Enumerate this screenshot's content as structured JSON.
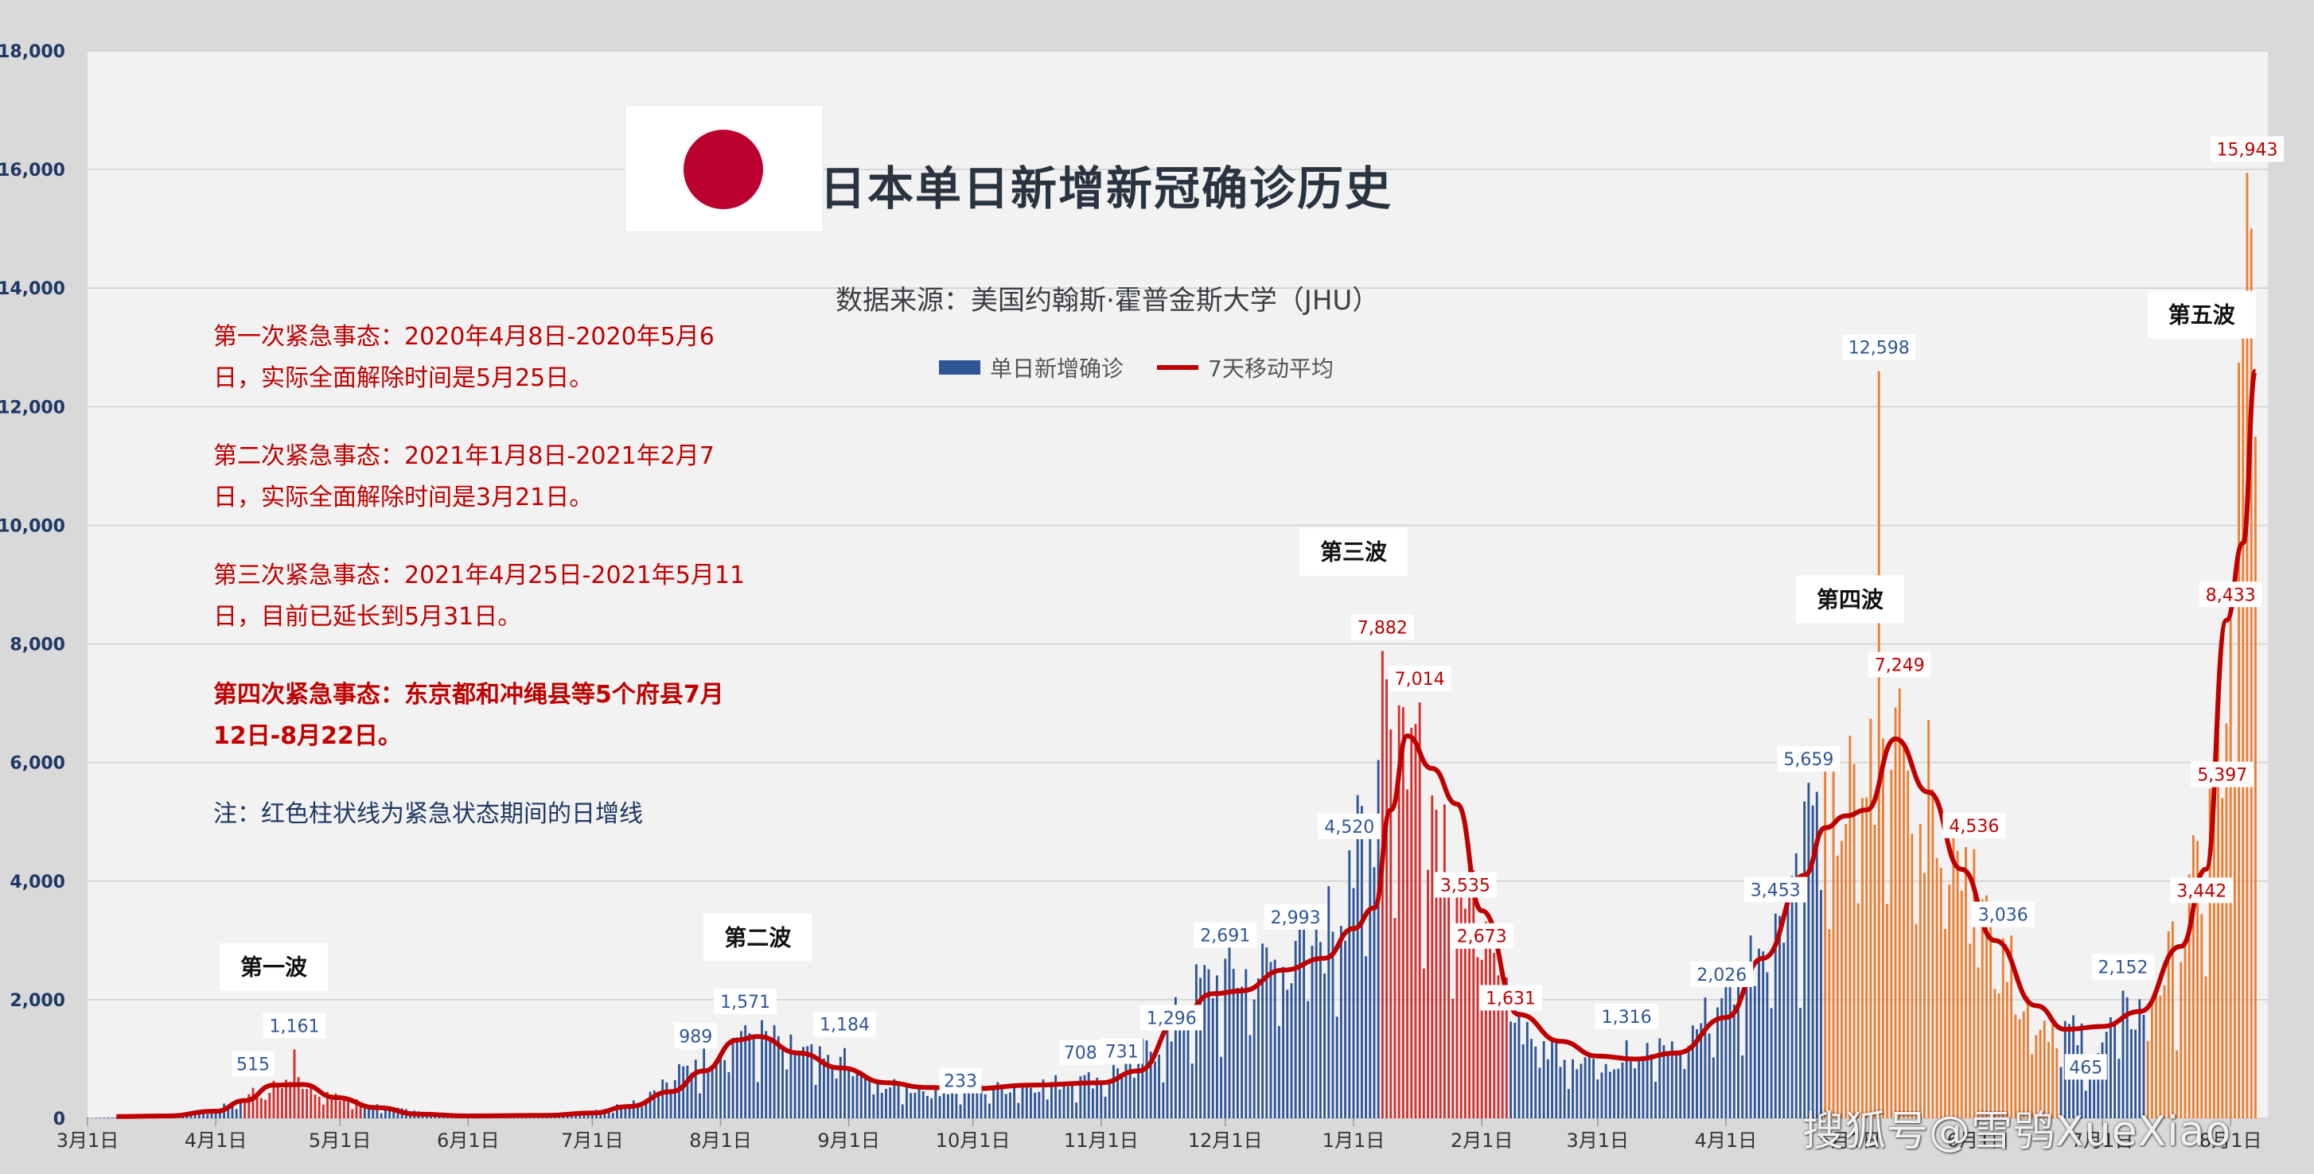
{
  "title": "日本单日新增新冠确诊历史",
  "source": "数据来源：美国约翰斯·霍普金斯大学（JHU）",
  "legend": {
    "bars": "单日新增确诊",
    "line": "7天移动平均"
  },
  "notes": [
    "第一次紧急事态：2020年4月8日-2020年5月6日，实际全面解除时间是5月25日。",
    "第二次紧急事态：2021年1月8日-2021年2月7日，实际全面解除时间是3月21日。",
    "第三次紧急事态：2021年4月25日-2021年5月11日，目前已延长到5月31日。",
    "第四次紧急事态：东京都和冲绳县等5个府县7月12日-8月22日。",
    "注：红色柱状线为紧急状态期间的日增线"
  ],
  "watermark": "搜狐号@雪鸮XueXiao",
  "colors": {
    "normal_bar": "#2f5597",
    "emergency_bar": "#d62d2d",
    "recent_bar": "#ed7d31",
    "line": "#c00000",
    "plot_bg": "#f2f2f2"
  },
  "chart_data": {
    "type": "bar",
    "x_start": "2020-03-01",
    "ylim": [
      0,
      18000
    ],
    "y_ticks": [
      "0",
      "2,000",
      "4,000",
      "6,000",
      "8,000",
      "10,000",
      "12,000",
      "14,000",
      "16,000",
      "18,000"
    ],
    "x_ticks": [
      {
        "date": "2020-03-01",
        "label": "3月1日"
      },
      {
        "date": "2020-04-01",
        "label": "4月1日"
      },
      {
        "date": "2020-05-01",
        "label": "5月1日"
      },
      {
        "date": "2020-06-01",
        "label": "6月1日"
      },
      {
        "date": "2020-07-01",
        "label": "7月1日"
      },
      {
        "date": "2020-08-01",
        "label": "8月1日"
      },
      {
        "date": "2020-09-01",
        "label": "9月1日"
      },
      {
        "date": "2020-10-01",
        "label": "10月1日"
      },
      {
        "date": "2020-11-01",
        "label": "11月1日"
      },
      {
        "date": "2020-12-01",
        "label": "12月1日"
      },
      {
        "date": "2021-01-01",
        "label": "1月1日"
      },
      {
        "date": "2021-02-01",
        "label": "2月1日"
      },
      {
        "date": "2021-03-01",
        "label": "3月1日"
      },
      {
        "date": "2021-04-01",
        "label": "4月1日"
      },
      {
        "date": "2021-05-01",
        "label": "5月1日"
      },
      {
        "date": "2021-06-01",
        "label": "6月1日"
      },
      {
        "date": "2021-07-01",
        "label": "7月1日"
      },
      {
        "date": "2021-08-01",
        "label": "8月1日"
      }
    ],
    "series": [
      {
        "name": "7天移动平均",
        "points": [
          [
            "2020-03-08",
            30
          ],
          [
            "2020-03-20",
            40
          ],
          [
            "2020-04-01",
            120
          ],
          [
            "2020-04-08",
            300
          ],
          [
            "2020-04-15",
            560
          ],
          [
            "2020-04-22",
            570
          ],
          [
            "2020-04-30",
            350
          ],
          [
            "2020-05-10",
            180
          ],
          [
            "2020-05-20",
            70
          ],
          [
            "2020-06-01",
            40
          ],
          [
            "2020-06-20",
            50
          ],
          [
            "2020-07-01",
            90
          ],
          [
            "2020-07-10",
            200
          ],
          [
            "2020-07-20",
            450
          ],
          [
            "2020-07-28",
            800
          ],
          [
            "2020-08-05",
            1320
          ],
          [
            "2020-08-10",
            1380
          ],
          [
            "2020-08-20",
            1100
          ],
          [
            "2020-08-30",
            850
          ],
          [
            "2020-09-10",
            600
          ],
          [
            "2020-09-20",
            520
          ],
          [
            "2020-10-01",
            500
          ],
          [
            "2020-10-15",
            560
          ],
          [
            "2020-11-01",
            600
          ],
          [
            "2020-11-10",
            800
          ],
          [
            "2020-11-20",
            1700
          ],
          [
            "2020-11-28",
            2100
          ],
          [
            "2020-12-05",
            2150
          ],
          [
            "2020-12-15",
            2500
          ],
          [
            "2020-12-25",
            2700
          ],
          [
            "2021-01-01",
            3200
          ],
          [
            "2021-01-06",
            3550
          ],
          [
            "2021-01-10",
            5200
          ],
          [
            "2021-01-14",
            6450
          ],
          [
            "2021-01-20",
            5900
          ],
          [
            "2021-01-26",
            5300
          ],
          [
            "2021-02-01",
            3500
          ],
          [
            "2021-02-10",
            1750
          ],
          [
            "2021-02-20",
            1300
          ],
          [
            "2021-03-01",
            1050
          ],
          [
            "2021-03-10",
            1000
          ],
          [
            "2021-03-20",
            1100
          ],
          [
            "2021-04-01",
            1700
          ],
          [
            "2021-04-10",
            2700
          ],
          [
            "2021-04-20",
            4100
          ],
          [
            "2021-04-25",
            4900
          ],
          [
            "2021-04-30",
            5100
          ],
          [
            "2021-05-05",
            5200
          ],
          [
            "2021-05-12",
            6400
          ],
          [
            "2021-05-20",
            5500
          ],
          [
            "2021-05-28",
            4200
          ],
          [
            "2021-06-05",
            3000
          ],
          [
            "2021-06-15",
            1900
          ],
          [
            "2021-06-22",
            1500
          ],
          [
            "2021-07-01",
            1550
          ],
          [
            "2021-07-10",
            1800
          ],
          [
            "2021-07-20",
            2900
          ],
          [
            "2021-07-26",
            4200
          ],
          [
            "2021-07-31",
            8400
          ],
          [
            "2021-08-04",
            9700
          ],
          [
            "2021-08-07",
            12600
          ]
        ]
      }
    ],
    "bar_segments": [
      {
        "from": "2020-03-01",
        "to": "2020-04-07",
        "color": "normal"
      },
      {
        "from": "2020-04-08",
        "to": "2020-05-06",
        "color": "emergency"
      },
      {
        "from": "2020-05-07",
        "to": "2021-01-07",
        "color": "normal"
      },
      {
        "from": "2021-01-08",
        "to": "2021-02-07",
        "color": "emergency"
      },
      {
        "from": "2021-02-08",
        "to": "2021-04-24",
        "color": "normal"
      },
      {
        "from": "2021-04-25",
        "to": "2021-06-20",
        "color": "recent"
      },
      {
        "from": "2021-06-21",
        "to": "2021-07-11",
        "color": "normal"
      },
      {
        "from": "2021-07-12",
        "to": "2021-08-07",
        "color": "recent"
      }
    ],
    "data_labels": [
      {
        "date": "2020-04-10",
        "value": 515,
        "text": "515",
        "color": "blue"
      },
      {
        "date": "2020-04-20",
        "value": 1161,
        "text": "1,161",
        "color": "blue"
      },
      {
        "date": "2020-07-26",
        "value": 989,
        "text": "989",
        "color": "blue"
      },
      {
        "date": "2020-08-07",
        "value": 1571,
        "text": "1,571",
        "color": "blue"
      },
      {
        "date": "2020-08-31",
        "value": 1184,
        "text": "1,184",
        "color": "blue"
      },
      {
        "date": "2020-09-28",
        "value": 233,
        "text": "233",
        "color": "blue"
      },
      {
        "date": "2020-10-27",
        "value": 708,
        "text": "708",
        "color": "blue"
      },
      {
        "date": "2020-11-06",
        "value": 731,
        "text": "731",
        "color": "blue"
      },
      {
        "date": "2020-11-18",
        "value": 1296,
        "text": "1,296",
        "color": "blue"
      },
      {
        "date": "2020-12-01",
        "value": 2691,
        "text": "2,691",
        "color": "blue"
      },
      {
        "date": "2020-12-18",
        "value": 2993,
        "text": "2,993",
        "color": "blue"
      },
      {
        "date": "2020-12-31",
        "value": 4520,
        "text": "4,520",
        "color": "blue"
      },
      {
        "date": "2021-01-08",
        "value": 7882,
        "text": "7,882",
        "color": "red"
      },
      {
        "date": "2021-01-17",
        "value": 7014,
        "text": "7,014",
        "color": "red"
      },
      {
        "date": "2021-01-28",
        "value": 3535,
        "text": "3,535",
        "color": "red"
      },
      {
        "date": "2021-02-01",
        "value": 2673,
        "text": "2,673",
        "color": "red"
      },
      {
        "date": "2021-02-08",
        "value": 1631,
        "text": "1,631",
        "color": "red"
      },
      {
        "date": "2021-03-08",
        "value": 1316,
        "text": "1,316",
        "color": "blue"
      },
      {
        "date": "2021-03-31",
        "value": 2026,
        "text": "2,026",
        "color": "blue"
      },
      {
        "date": "2021-04-13",
        "value": 3453,
        "text": "3,453",
        "color": "blue"
      },
      {
        "date": "2021-04-21",
        "value": 5659,
        "text": "5,659",
        "color": "blue"
      },
      {
        "date": "2021-05-08",
        "value": 12598,
        "text": "12,598",
        "color": "blue"
      },
      {
        "date": "2021-05-13",
        "value": 7249,
        "text": "7,249",
        "color": "red"
      },
      {
        "date": "2021-05-31",
        "value": 4536,
        "text": "4,536",
        "color": "red"
      },
      {
        "date": "2021-06-07",
        "value": 3036,
        "text": "3,036",
        "color": "blue"
      },
      {
        "date": "2021-06-27",
        "value": 465,
        "text": "465",
        "color": "blue"
      },
      {
        "date": "2021-07-06",
        "value": 2152,
        "text": "2,152",
        "color": "blue"
      },
      {
        "date": "2021-07-25",
        "value": 3442,
        "text": "3,442",
        "color": "red"
      },
      {
        "date": "2021-07-30",
        "value": 5397,
        "text": "5,397",
        "color": "red"
      },
      {
        "date": "2021-08-01",
        "value": 8433,
        "text": "8,433",
        "color": "red"
      },
      {
        "date": "2021-08-05",
        "value": 15943,
        "text": "15,943",
        "color": "red"
      }
    ],
    "wave_labels": [
      {
        "date": "2020-04-15",
        "value": 2500,
        "text": "第一波"
      },
      {
        "date": "2020-08-10",
        "value": 3000,
        "text": "第二波"
      },
      {
        "date": "2021-01-01",
        "value": 9500,
        "text": "第三波"
      },
      {
        "date": "2021-05-01",
        "value": 8700,
        "text": "第四波"
      },
      {
        "date": "2021-07-25",
        "value": 13500,
        "text": "第五波"
      }
    ],
    "anchors": [
      [
        "2020-03-01",
        10
      ],
      [
        "2020-03-20",
        30
      ],
      [
        "2020-04-01",
        150
      ],
      [
        "2020-04-12",
        450
      ],
      [
        "2020-04-20",
        700
      ],
      [
        "2020-04-30",
        350
      ],
      [
        "2020-05-15",
        150
      ],
      [
        "2020-06-01",
        40
      ],
      [
        "2020-06-25",
        60
      ],
      [
        "2020-07-10",
        250
      ],
      [
        "2020-07-25",
        900
      ],
      [
        "2020-08-05",
        1500
      ],
      [
        "2020-08-12",
        1400
      ],
      [
        "2020-08-25",
        1000
      ],
      [
        "2020-09-10",
        550
      ],
      [
        "2020-10-01",
        480
      ],
      [
        "2020-11-01",
        700
      ],
      [
        "2020-11-15",
        1300
      ],
      [
        "2020-11-25",
        2300
      ],
      [
        "2020-12-10",
        2600
      ],
      [
        "2020-12-25",
        3200
      ],
      [
        "2021-01-05",
        5000
      ],
      [
        "2021-01-09",
        7700
      ],
      [
        "2021-01-15",
        6500
      ],
      [
        "2021-01-25",
        4800
      ],
      [
        "2021-02-05",
        2200
      ],
      [
        "2021-02-15",
        1300
      ],
      [
        "2021-03-01",
        1000
      ],
      [
        "2021-03-20",
        1200
      ],
      [
        "2021-04-05",
        2500
      ],
      [
        "2021-04-20",
        4800
      ],
      [
        "2021-05-01",
        5500
      ],
      [
        "2021-05-13",
        6800
      ],
      [
        "2021-05-22",
        5200
      ],
      [
        "2021-06-01",
        3500
      ],
      [
        "2021-06-15",
        1800
      ],
      [
        "2021-06-28",
        1300
      ],
      [
        "2021-07-10",
        1900
      ],
      [
        "2021-07-20",
        3000
      ],
      [
        "2021-07-28",
        5500
      ],
      [
        "2021-08-01",
        8400
      ],
      [
        "2021-08-05",
        14000
      ],
      [
        "2021-08-07",
        15500
      ]
    ]
  }
}
